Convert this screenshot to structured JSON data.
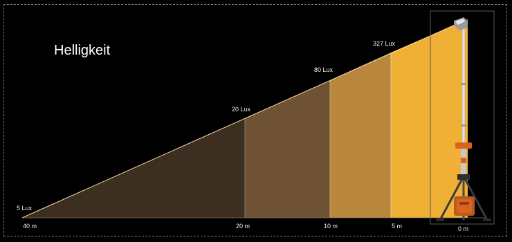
{
  "title": "Helligkeit",
  "zones": [
    {
      "lux_label": "5 Lux",
      "distance_label": "40 m",
      "color": "#3c2f22"
    },
    {
      "lux_label": "20 Lux",
      "distance_label": "20 m",
      "color": "#6e5233"
    },
    {
      "lux_label": "80 Lux",
      "distance_label": "10 m",
      "color": "#b8873d"
    },
    {
      "lux_label": "327 Lux",
      "distance_label": "5 m",
      "color": "#f0b035"
    }
  ],
  "lamp_distance_label": "0 m",
  "colors": {
    "background": "#000000",
    "frame": "#7a7a7a",
    "beam_edge": "#f7d9a6",
    "tripod_orange": "#d8641f",
    "mast_silver": "#c8c8c8"
  }
}
